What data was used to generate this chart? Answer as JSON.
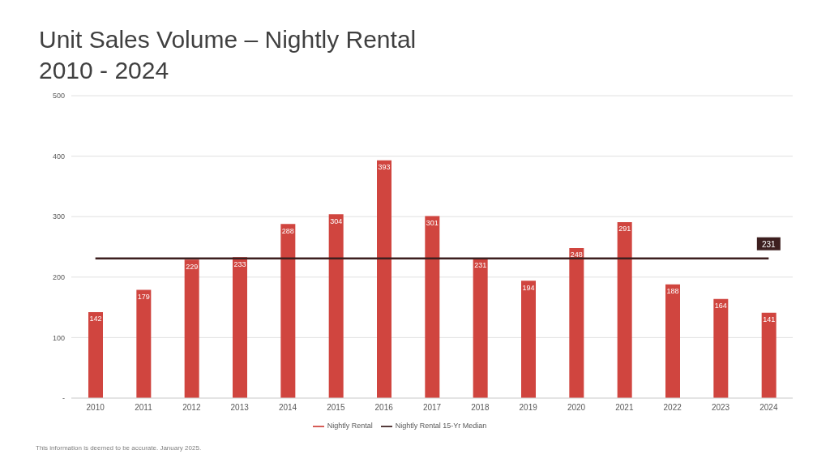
{
  "chart_data": {
    "type": "bar",
    "title": "Unit Sales Volume – Nightly Rental",
    "subtitle": "2010 - 2024",
    "categories": [
      "2010",
      "2011",
      "2012",
      "2013",
      "2014",
      "2015",
      "2016",
      "2017",
      "2018",
      "2019",
      "2020",
      "2021",
      "2022",
      "2023",
      "2024"
    ],
    "series": [
      {
        "name": "Nightly Rental",
        "color": "#d0453f",
        "values": [
          142,
          179,
          229,
          233,
          288,
          304,
          393,
          301,
          231,
          194,
          248,
          291,
          188,
          164,
          141
        ]
      },
      {
        "name": "Nightly Rental 15-Yr Median",
        "type": "line",
        "color": "#3d1f1f",
        "values": [
          231,
          231,
          231,
          231,
          231,
          231,
          231,
          231,
          231,
          231,
          231,
          231,
          231,
          231,
          231
        ],
        "value_labels": [
          null,
          null,
          null,
          null,
          null,
          null,
          null,
          null,
          null,
          null,
          null,
          null,
          null,
          null,
          "231"
        ]
      }
    ],
    "data_labels": true,
    "ylim": [
      0,
      500
    ],
    "yticks": [
      {
        "value": 0,
        "label": "-"
      },
      100,
      200,
      300,
      400,
      500
    ],
    "grid": "y",
    "legend": "bottom",
    "marker": "none",
    "line_style": "solid",
    "annotations": [
      "This information is deemed to be accurate. January 2025."
    ]
  }
}
